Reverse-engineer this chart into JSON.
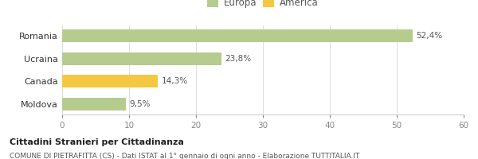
{
  "categories": [
    "Romania",
    "Ucraina",
    "Canada",
    "Moldova"
  ],
  "values": [
    52.4,
    23.8,
    14.3,
    9.5
  ],
  "labels": [
    "52,4%",
    "23,8%",
    "14,3%",
    "9,5%"
  ],
  "bar_colors": [
    "#b5cc8e",
    "#b5cc8e",
    "#f5c842",
    "#b5cc8e"
  ],
  "legend": [
    {
      "label": "Europa",
      "color": "#b5cc8e"
    },
    {
      "label": "America",
      "color": "#f5c842"
    }
  ],
  "xlim": [
    0,
    60
  ],
  "xticks": [
    0,
    10,
    20,
    30,
    40,
    50,
    60
  ],
  "title_bold": "Cittadini Stranieri per Cittadinanza",
  "subtitle": "COMUNE DI PIETRAFITTA (CS) - Dati ISTAT al 1° gennaio di ogni anno - Elaborazione TUTTITALIA.IT",
  "background_color": "#ffffff",
  "bar_height": 0.55
}
